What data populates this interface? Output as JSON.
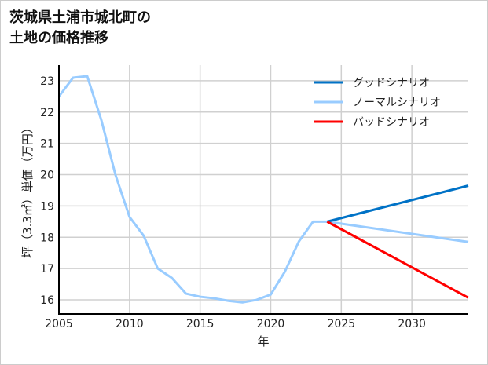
{
  "chart_data": {
    "type": "line",
    "title_lines": [
      "茨城県土浦市城北町の",
      "土地の価格推移"
    ],
    "xlabel": "年",
    "ylabel": "坪（3.3㎡）単価（万円）",
    "xlim": [
      2005,
      2034
    ],
    "ylim": [
      15.55,
      23.5
    ],
    "xticks": [
      2005,
      2010,
      2015,
      2020,
      2025,
      2030
    ],
    "yticks": [
      16,
      17,
      18,
      19,
      20,
      21,
      22,
      23
    ],
    "grid": true,
    "legend_position": "top-right",
    "series": [
      {
        "name": "グッドシナリオ",
        "color": "#0072c6",
        "x": [
          2024,
          2034
        ],
        "y": [
          18.5,
          19.65
        ]
      },
      {
        "name": "ノーマルシナリオ",
        "color": "#99ccff",
        "x": [
          2005,
          2006,
          2007,
          2008,
          2009,
          2010,
          2011,
          2012,
          2013,
          2014,
          2015,
          2016,
          2017,
          2018,
          2019,
          2020,
          2021,
          2022,
          2023,
          2024,
          2034
        ],
        "y": [
          22.5,
          23.1,
          23.15,
          21.75,
          20.0,
          18.65,
          18.05,
          17.0,
          16.7,
          16.2,
          16.1,
          16.05,
          15.97,
          15.92,
          16.0,
          16.17,
          16.9,
          17.87,
          18.5,
          18.5,
          17.85
        ]
      },
      {
        "name": "バッドシナリオ",
        "color": "#ff0000",
        "x": [
          2024,
          2034
        ],
        "y": [
          18.5,
          16.07
        ]
      }
    ]
  }
}
